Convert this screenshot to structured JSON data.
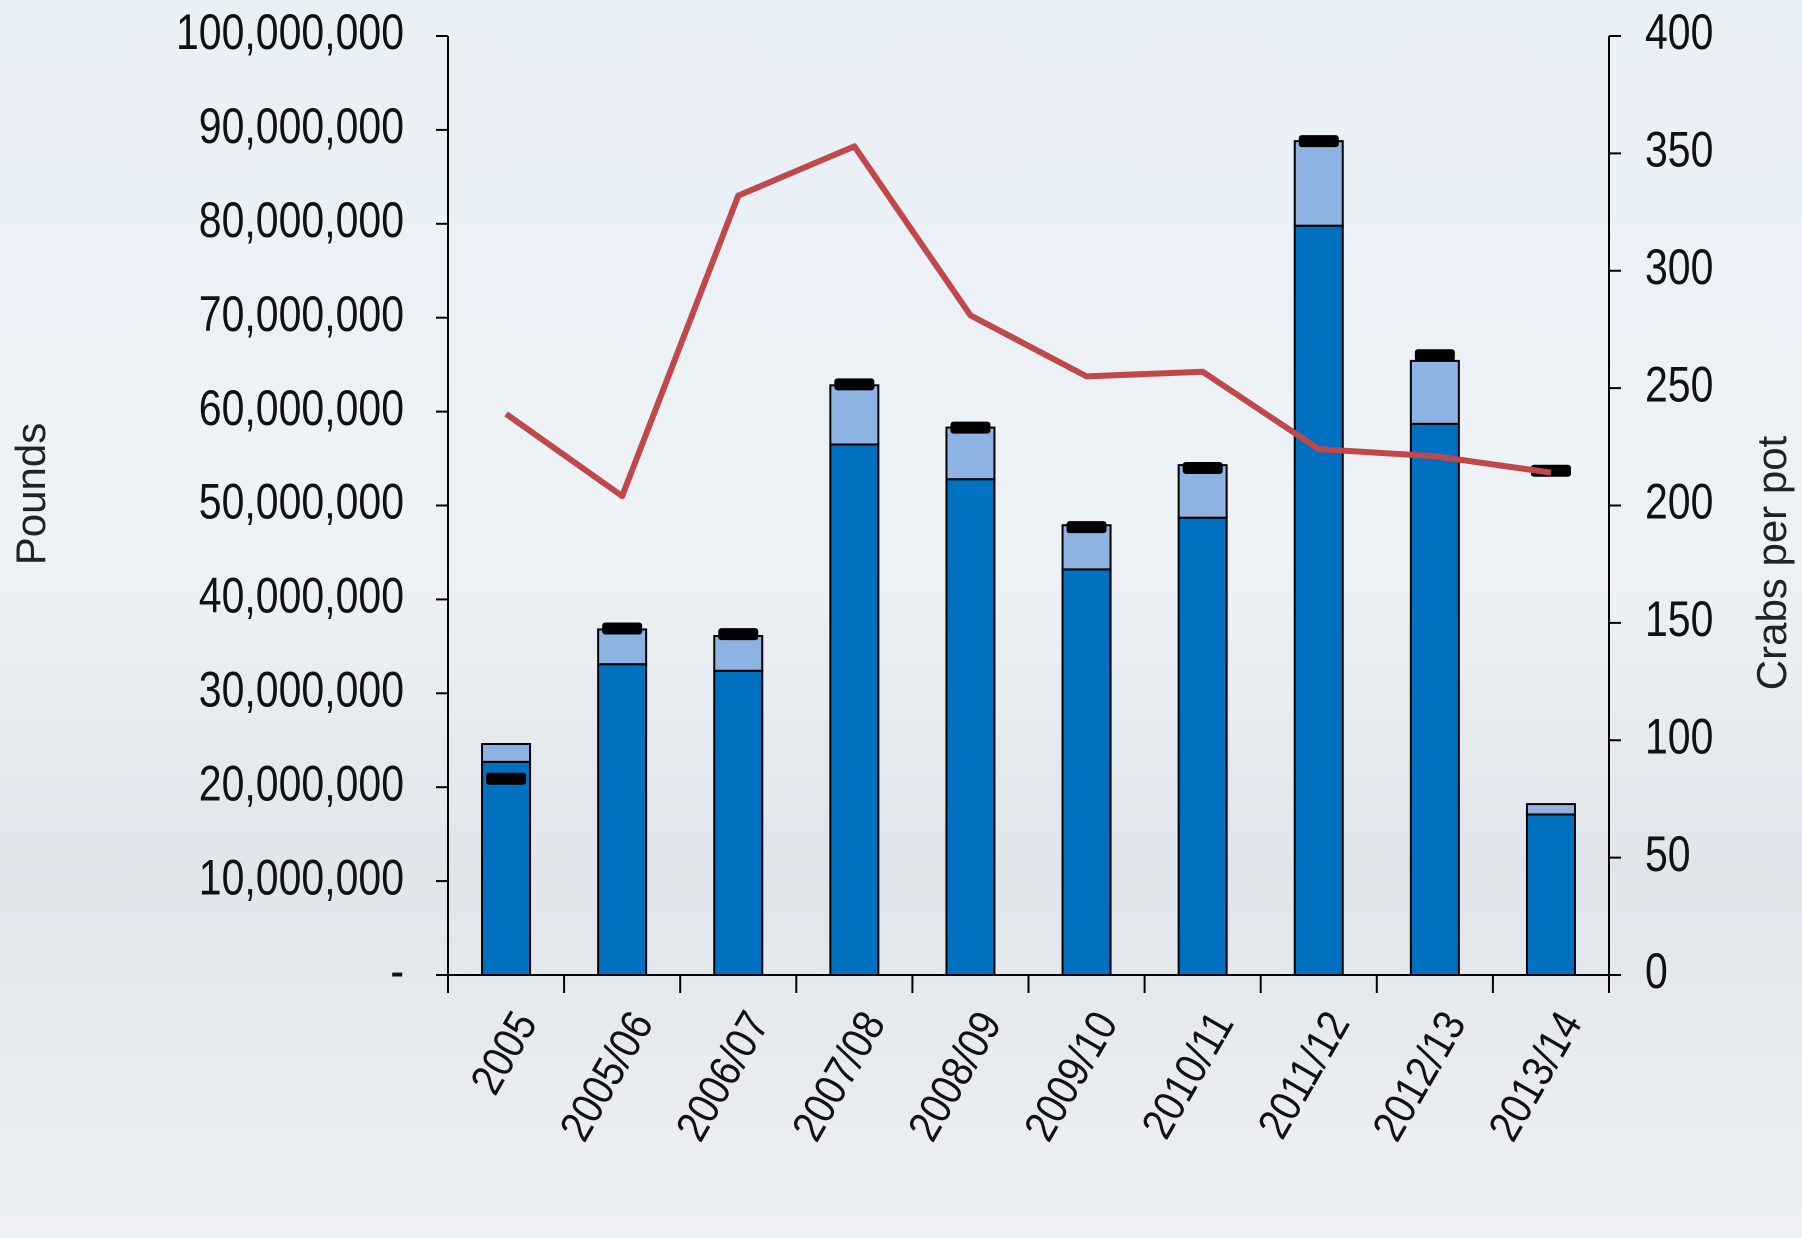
{
  "chart_data": {
    "type": "bar",
    "ylabel": "Pounds",
    "y2label": "Crabs per pot",
    "categories": [
      "2005",
      "2005/06",
      "2006/07",
      "2007/08",
      "2008/09",
      "2009/10",
      "2010/11",
      "2011/12",
      "2012/13",
      "2013/14"
    ],
    "series": [
      {
        "type": "bar",
        "color": "#0070c0",
        "values": [
          22700000,
          33100000,
          32400000,
          56500000,
          52800000,
          43200000,
          48700000,
          79800000,
          58700000,
          17100000
        ]
      },
      {
        "type": "bar",
        "color": "#8db3e2",
        "values": [
          1900000,
          3700000,
          3700000,
          6300000,
          5500000,
          4700000,
          5600000,
          9000000,
          6700000,
          1100000
        ]
      },
      {
        "type": "marker",
        "color": "#000000",
        "values": [
          20900000,
          36900000,
          36300000,
          62900000,
          58300000,
          47700000,
          54000000,
          88800000,
          66000000,
          53700000
        ]
      },
      {
        "type": "line",
        "axis": "y2",
        "color": "#c0484a",
        "values": [
          239,
          204,
          332,
          353,
          281,
          255,
          257,
          224,
          221,
          214
        ]
      }
    ],
    "ylim": [
      0,
      100000000
    ],
    "yticks": [
      {
        "value": 0,
        "label": "-"
      },
      {
        "value": 10000000,
        "label": "10,000,000"
      },
      {
        "value": 20000000,
        "label": "20,000,000"
      },
      {
        "value": 30000000,
        "label": "30,000,000"
      },
      {
        "value": 40000000,
        "label": "40,000,000"
      },
      {
        "value": 50000000,
        "label": "50,000,000"
      },
      {
        "value": 60000000,
        "label": "60,000,000"
      },
      {
        "value": 70000000,
        "label": "70,000,000"
      },
      {
        "value": 80000000,
        "label": "80,000,000"
      },
      {
        "value": 90000000,
        "label": "90,000,000"
      },
      {
        "value": 100000000,
        "label": "100,000,000"
      }
    ],
    "y2lim": [
      0,
      400
    ],
    "y2ticks": [
      0,
      50,
      100,
      150,
      200,
      250,
      300,
      350,
      400
    ]
  }
}
